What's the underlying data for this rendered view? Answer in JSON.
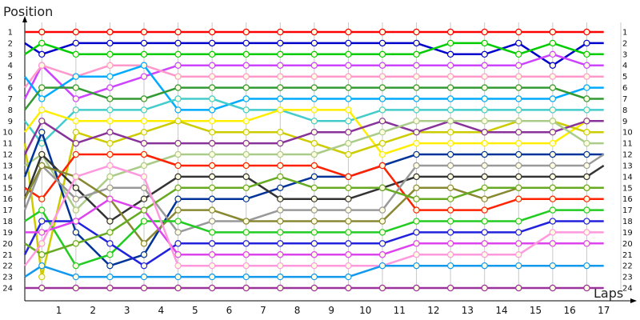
{
  "chart_data": {
    "type": "line",
    "title": "",
    "ylabel": "Position",
    "xlabel": "Laps",
    "x_categories": [
      "1",
      "2",
      "3",
      "4",
      "5",
      "6",
      "7",
      "8",
      "9",
      "10",
      "11",
      "12",
      "13",
      "14",
      "15",
      "16",
      "17"
    ],
    "y_ticks": [
      "1",
      "2",
      "3",
      "4",
      "5",
      "6",
      "7",
      "8",
      "9",
      "10",
      "11",
      "12",
      "13",
      "14",
      "15",
      "16",
      "17",
      "18",
      "19",
      "20",
      "21",
      "22",
      "23",
      "24"
    ],
    "ylim": [
      1,
      24
    ],
    "y_inverted": true,
    "grid": "vertical",
    "x_points": [
      0,
      0.5,
      1.5,
      2.5,
      3.5,
      4.5,
      5.5,
      6.5,
      7.5,
      8.5,
      9.5,
      10.5,
      11.5,
      12.5,
      13.5,
      14.5,
      15.5,
      16.5,
      17.0
    ],
    "series": [
      {
        "color": "#ff0000",
        "values": [
          1,
          1,
          1,
          1,
          1,
          1,
          1,
          1,
          1,
          1,
          1,
          1,
          1,
          1,
          1,
          1,
          1,
          1,
          1
        ]
      },
      {
        "color": "#0000cc",
        "values": [
          2,
          3,
          2,
          2,
          2,
          2,
          2,
          2,
          2,
          2,
          2,
          2,
          2,
          3,
          3,
          2,
          4,
          2,
          2
        ]
      },
      {
        "color": "#00cc00",
        "values": [
          3,
          2,
          3,
          3,
          3,
          3,
          3,
          3,
          3,
          3,
          3,
          3,
          3,
          2,
          2,
          3,
          2,
          3,
          3
        ]
      },
      {
        "color": "#cc44ff",
        "values": [
          7,
          4,
          7,
          6,
          5,
          4,
          4,
          4,
          4,
          4,
          4,
          4,
          4,
          4,
          4,
          4,
          3,
          4,
          4
        ]
      },
      {
        "color": "#ff99cc",
        "values": [
          6,
          4,
          5,
          4,
          4,
          5,
          5,
          5,
          5,
          5,
          5,
          5,
          5,
          5,
          5,
          5,
          5,
          5,
          5
        ]
      },
      {
        "color": "#00aaff",
        "values": [
          5,
          7,
          5,
          5,
          4,
          8,
          8,
          7,
          7,
          7,
          7,
          7,
          7,
          7,
          7,
          7,
          7,
          6,
          6
        ]
      },
      {
        "color": "#339933",
        "values": [
          8,
          6,
          6,
          7,
          7,
          6,
          6,
          6,
          6,
          6,
          6,
          6,
          6,
          6,
          6,
          6,
          6,
          7,
          7
        ]
      },
      {
        "color": "#44cccc",
        "values": [
          9,
          11,
          8,
          8,
          8,
          7,
          7,
          8,
          8,
          9,
          9,
          8,
          8,
          8,
          8,
          8,
          8,
          8,
          8
        ]
      },
      {
        "color": "#ffee00",
        "values": [
          10,
          8,
          9,
          9,
          9,
          9,
          9,
          9,
          8,
          8,
          8,
          12,
          11,
          11,
          11,
          11,
          11,
          9,
          9
        ]
      },
      {
        "color": "#cccc00",
        "values": [
          11,
          23,
          10,
          11,
          10,
          9,
          10,
          10,
          10,
          11,
          12,
          11,
          10,
          10,
          10,
          9,
          9,
          10,
          10
        ]
      },
      {
        "color": "#883399",
        "values": [
          12,
          9,
          11,
          10,
          11,
          11,
          11,
          11,
          11,
          10,
          10,
          9,
          10,
          9,
          10,
          10,
          10,
          9,
          9
        ]
      },
      {
        "color": "#aacc88",
        "values": [
          13,
          12,
          17,
          14,
          13,
          12,
          12,
          12,
          12,
          12,
          11,
          10,
          9,
          9,
          9,
          9,
          9,
          11,
          11
        ]
      },
      {
        "color": "#003399",
        "values": [
          14,
          10,
          19,
          22,
          21,
          16,
          16,
          16,
          15,
          14,
          14,
          13,
          12,
          12,
          12,
          12,
          12,
          12,
          12
        ]
      },
      {
        "color": "#333333",
        "values": [
          16,
          12,
          15,
          18,
          16,
          14,
          14,
          14,
          16,
          16,
          16,
          15,
          14,
          14,
          14,
          14,
          14,
          14,
          13
        ]
      },
      {
        "color": "#ff2200",
        "values": [
          15,
          16,
          12,
          12,
          12,
          13,
          13,
          13,
          13,
          13,
          14,
          13,
          17,
          17,
          17,
          16,
          16,
          16,
          16
        ]
      },
      {
        "color": "#999999",
        "values": [
          17,
          13,
          16,
          15,
          15,
          19,
          18,
          18,
          17,
          17,
          17,
          17,
          13,
          13,
          13,
          13,
          13,
          13,
          12
        ]
      },
      {
        "color": "#888833",
        "values": [
          16,
          13,
          14,
          16,
          20,
          17,
          17,
          18,
          18,
          18,
          18,
          18,
          15,
          15,
          16,
          15,
          15,
          15,
          15
        ]
      },
      {
        "color": "#22cc22",
        "values": [
          18,
          17,
          22,
          21,
          18,
          18,
          19,
          19,
          19,
          19,
          19,
          19,
          18,
          18,
          18,
          18,
          17,
          17,
          17
        ]
      },
      {
        "color": "#2222dd",
        "values": [
          21,
          18,
          18,
          20,
          22,
          20,
          20,
          20,
          20,
          20,
          20,
          20,
          19,
          19,
          19,
          19,
          18,
          18,
          18
        ]
      },
      {
        "color": "#dd44ee",
        "values": [
          19,
          19,
          18,
          16,
          17,
          21,
          21,
          21,
          21,
          21,
          21,
          21,
          20,
          20,
          20,
          20,
          20,
          20,
          20
        ]
      },
      {
        "color": "#66aa22",
        "values": [
          20,
          21,
          20,
          19,
          17,
          15,
          15,
          15,
          14,
          15,
          15,
          15,
          16,
          16,
          15,
          15,
          15,
          15,
          15
        ]
      },
      {
        "color": "#ff99dd",
        "values": [
          22,
          20,
          14,
          13,
          14,
          22,
          22,
          22,
          22,
          22,
          22,
          22,
          21,
          21,
          21,
          21,
          19,
          19,
          19
        ]
      },
      {
        "color": "#1199ee",
        "values": [
          23,
          22,
          23,
          23,
          23,
          23,
          23,
          23,
          23,
          23,
          23,
          22,
          22,
          22,
          22,
          22,
          22,
          22,
          22
        ]
      },
      {
        "color": "#993399",
        "values": [
          24,
          24,
          24,
          24,
          24,
          24,
          24,
          24,
          24,
          24,
          24,
          24,
          24,
          24,
          24,
          24,
          24,
          24,
          24
        ]
      }
    ]
  }
}
